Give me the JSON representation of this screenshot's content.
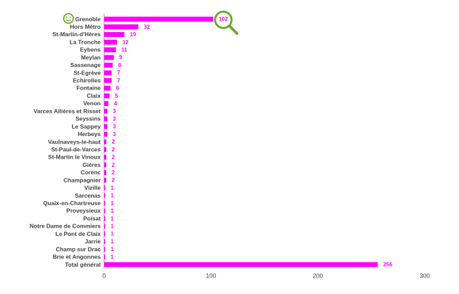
{
  "chart_data": {
    "type": "bar",
    "orientation": "horizontal",
    "categories": [
      "Grenoble",
      "Hors Métro",
      "St-Martin-d'Hères",
      "La Tronche",
      "Eybens",
      "Meylan",
      "Sassenage",
      "St-Egrève",
      "Echirolles",
      "Fontaine",
      "Claix",
      "Venon",
      "Varces Allières et Risset",
      "Seyssins",
      "Le Sappey",
      "Herbeys",
      "Vaulnaveys-le-haut",
      "St-Paul-de-Varces",
      "St-Martin le Vinoux",
      "Gières",
      "Corenc",
      "Champagnier",
      "Vizille",
      "Sarcenas",
      "Quaix-en-Chartreuse",
      "Proveysieux",
      "Poisat",
      "Notre Dame de Commiers",
      "Le Pont de Claix",
      "Jarrie",
      "Champ sur Drac",
      "Brie et Angonnes",
      "Total général"
    ],
    "values": [
      102,
      32,
      19,
      12,
      11,
      9,
      8,
      7,
      7,
      6,
      5,
      4,
      3,
      3,
      3,
      3,
      2,
      2,
      2,
      2,
      2,
      2,
      1,
      1,
      1,
      1,
      1,
      1,
      1,
      1,
      1,
      1,
      256
    ],
    "color": "#ff00ff",
    "xlim": [
      0,
      300
    ],
    "xticks": [
      0,
      100,
      200,
      300
    ],
    "grid": false
  }
}
